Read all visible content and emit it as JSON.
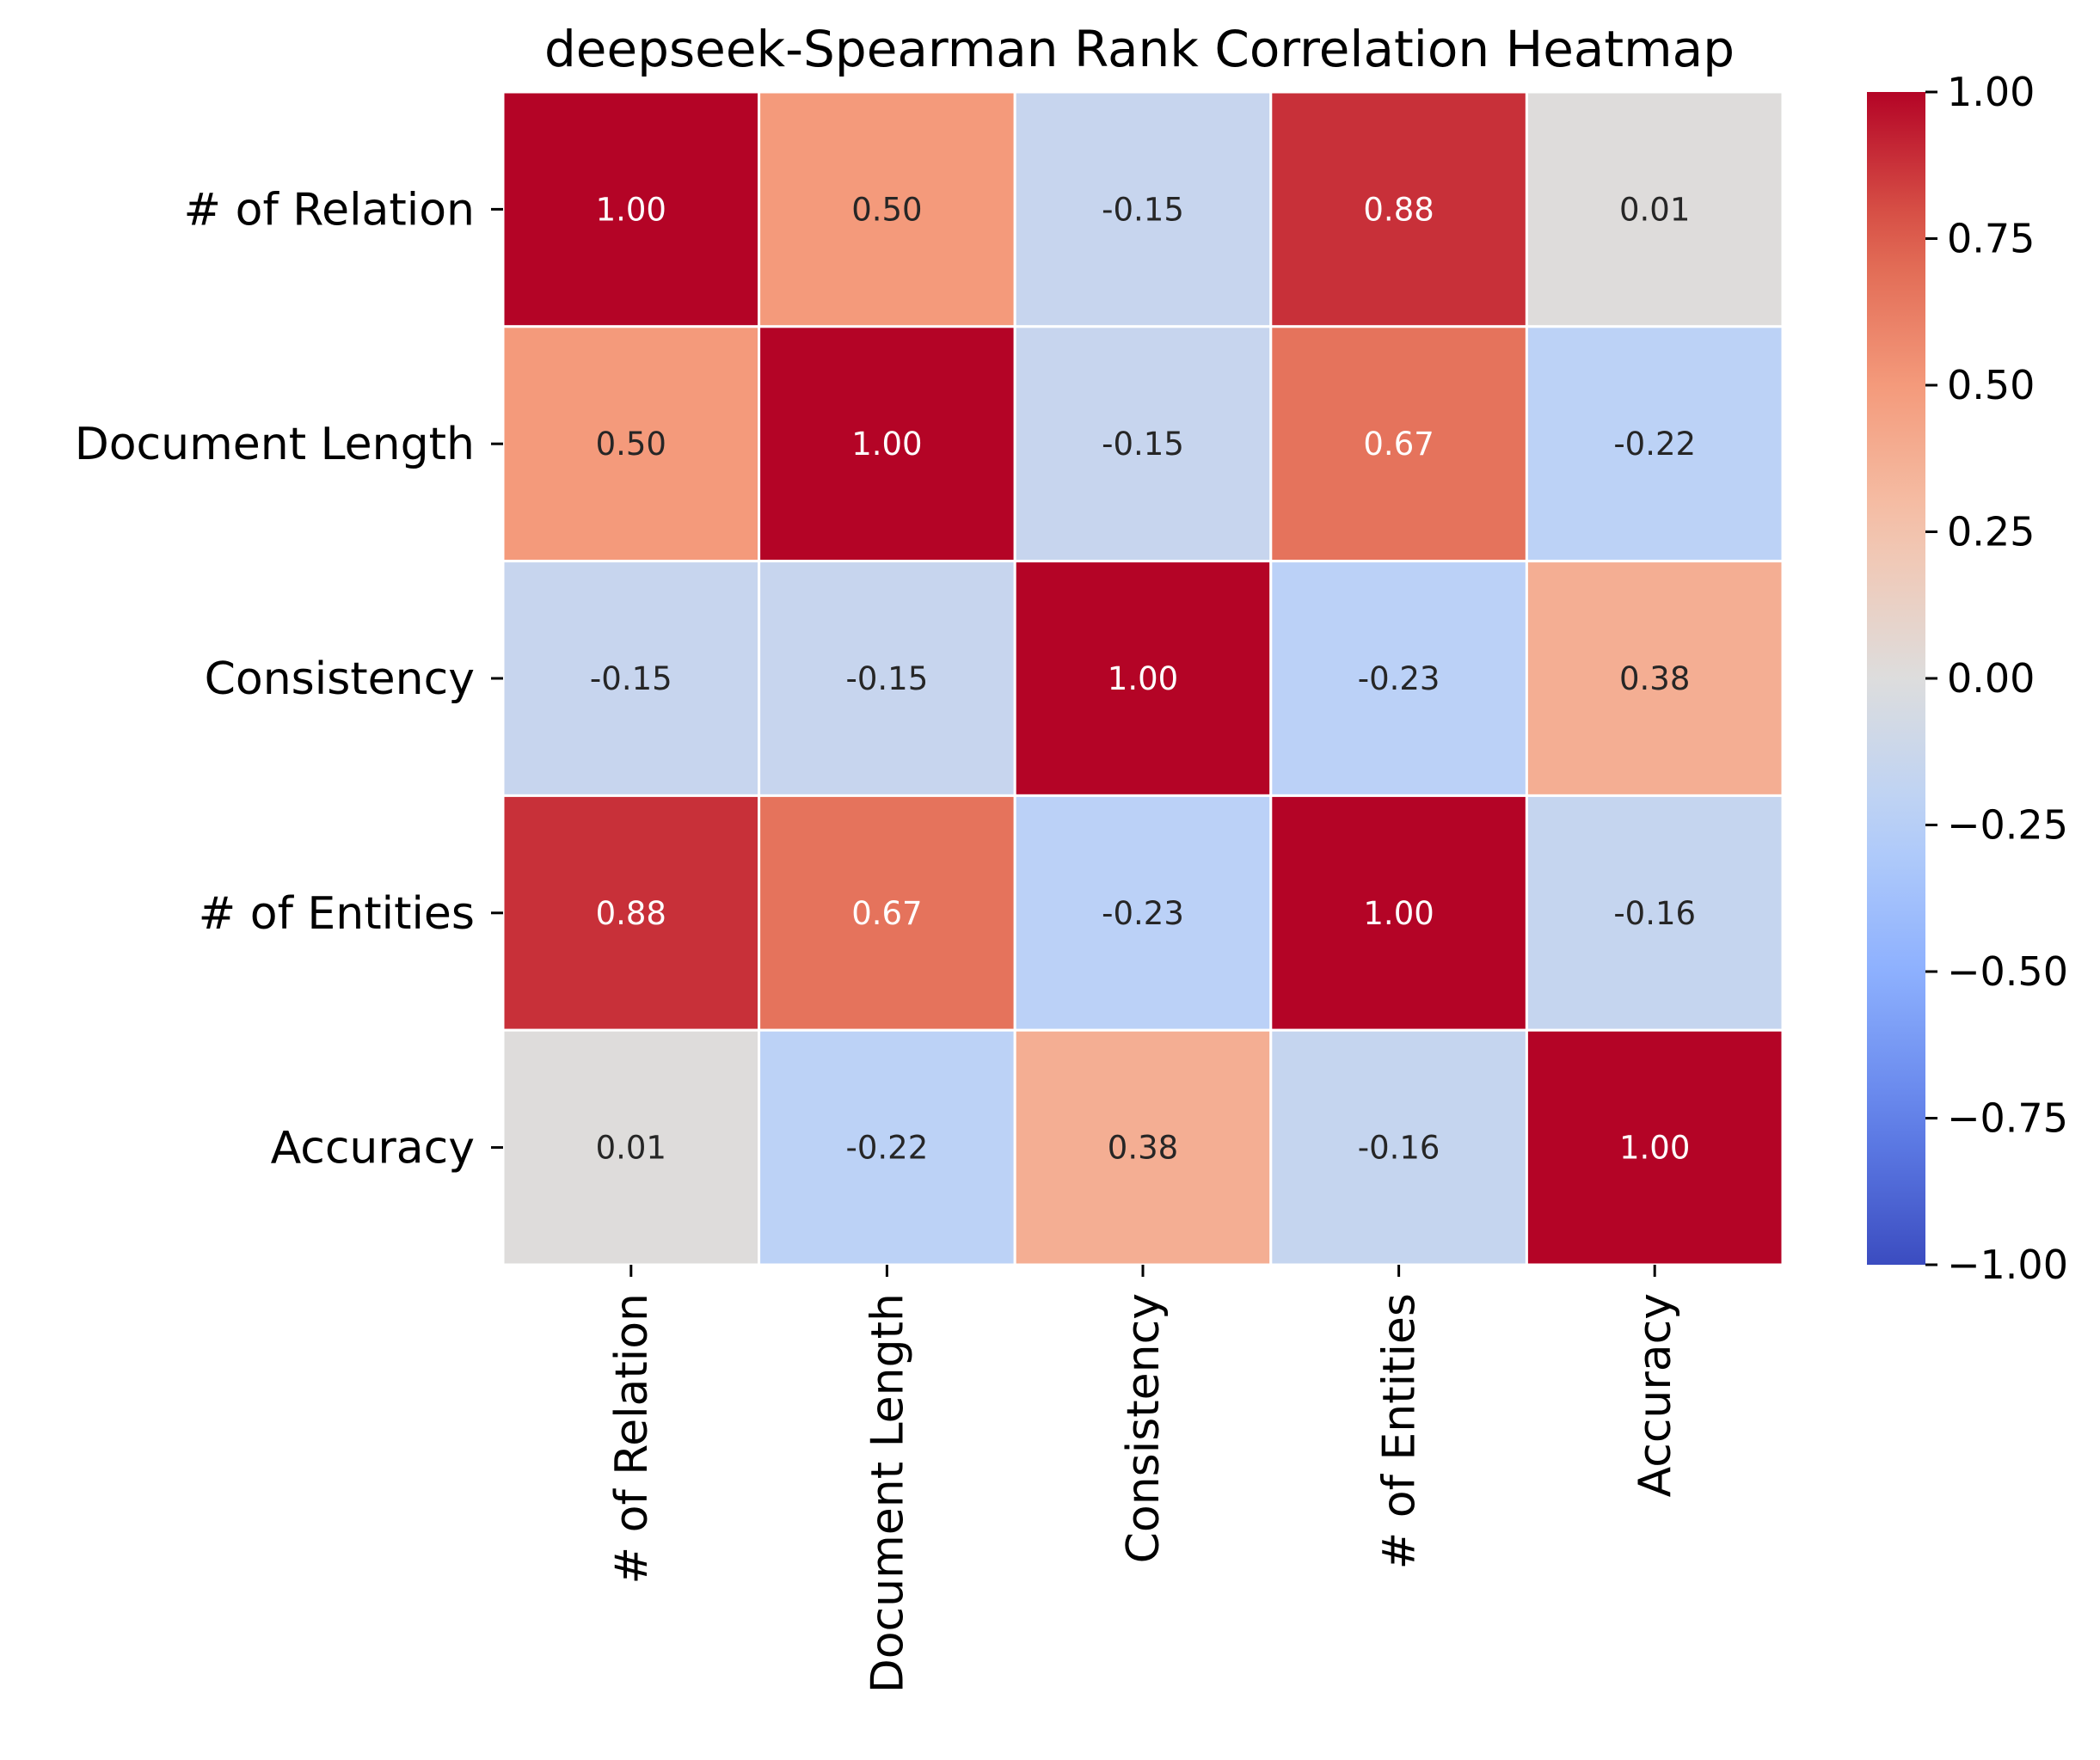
{
  "chart_data": {
    "type": "heatmap",
    "title": "deepseek-Spearman Rank Correlation Heatmap",
    "row_labels": [
      "# of Relation",
      "Document Length",
      "Consistency",
      "# of Entities",
      "Accuracy"
    ],
    "col_labels": [
      "# of Relation",
      "Document Length",
      "Consistency",
      "# of Entities",
      "Accuracy"
    ],
    "values": [
      [
        1.0,
        0.5,
        -0.15,
        0.88,
        0.01
      ],
      [
        0.5,
        1.0,
        -0.15,
        0.67,
        -0.22
      ],
      [
        -0.15,
        -0.15,
        1.0,
        -0.23,
        0.38
      ],
      [
        0.88,
        0.67,
        -0.23,
        1.0,
        -0.16
      ],
      [
        0.01,
        -0.22,
        0.38,
        -0.16,
        1.0
      ]
    ],
    "value_format": "0.00",
    "colormap": "coolwarm",
    "vmin": -1.0,
    "vmax": 1.0,
    "colorbar_ticks": [
      "1.00",
      "0.75",
      "0.50",
      "0.25",
      "0.00",
      "−0.25",
      "−0.50",
      "−0.75",
      "−1.00"
    ],
    "colorbar_tick_values": [
      1.0,
      0.75,
      0.5,
      0.25,
      0.0,
      -0.25,
      -0.5,
      -0.75,
      -1.0
    ],
    "colorbar_placement": "right",
    "cell_border_color": "#ffffff"
  }
}
